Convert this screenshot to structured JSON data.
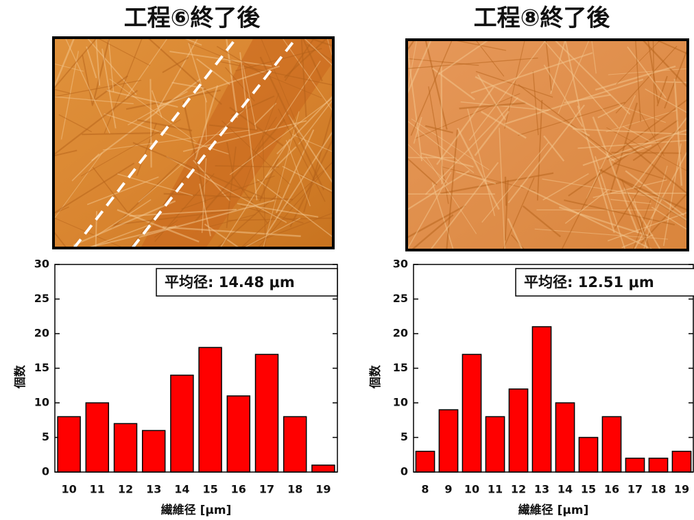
{
  "chart_data": [
    {
      "type": "bar",
      "title": "工程⑥終了後",
      "annotation": "平均径: 14.48 μm",
      "x_label": "繊維径 [μm]",
      "y_label": "個数",
      "categories": [
        "10",
        "11",
        "12",
        "13",
        "14",
        "15",
        "16",
        "17",
        "18",
        "19"
      ],
      "values": [
        8,
        10,
        7,
        6,
        14,
        18,
        11,
        17,
        8,
        1
      ],
      "color": "#ff0000",
      "ylim": [
        0,
        30
      ],
      "yticks": [
        0,
        5,
        10,
        15,
        20,
        25,
        30
      ]
    },
    {
      "type": "bar",
      "title": "工程⑧終了後",
      "annotation": "平均径: 12.51 μm",
      "x_label": "繊維径 [μm]",
      "y_label": "個数",
      "categories": [
        "8",
        "9",
        "10",
        "11",
        "12",
        "13",
        "14",
        "15",
        "16",
        "17",
        "18",
        "19"
      ],
      "values": [
        3,
        9,
        17,
        8,
        12,
        21,
        10,
        5,
        8,
        2,
        2,
        3
      ],
      "color": "#ff0000",
      "ylim": [
        0,
        30
      ],
      "yticks": [
        0,
        5,
        10,
        15,
        20,
        25,
        30
      ]
    }
  ]
}
